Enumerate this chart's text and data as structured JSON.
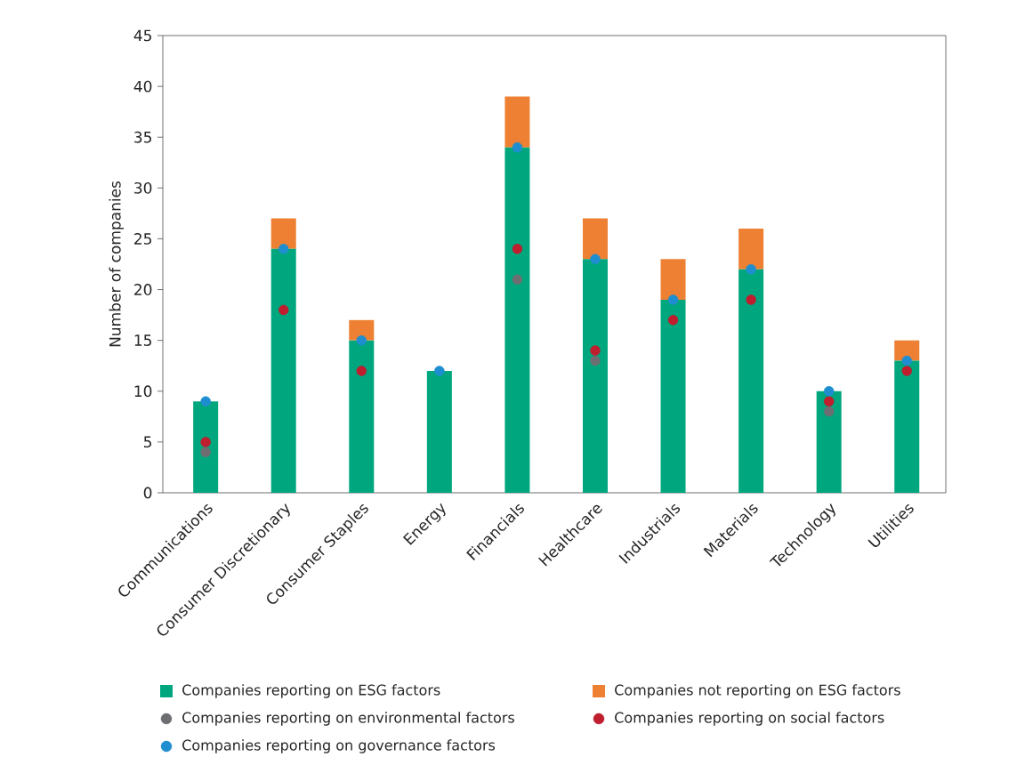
{
  "chart_data": {
    "type": "bar",
    "stacked": true,
    "ylabel": "Number of companies",
    "categories": [
      "Communications",
      "Consumer Discretionary",
      "Consumer Staples",
      "Energy",
      "Financials",
      "Healthcare",
      "Industrials",
      "Materials",
      "Technology",
      "Utilities"
    ],
    "series": [
      {
        "name": "Companies reporting on ESG factors",
        "color": "#00a77e",
        "values": [
          9,
          24,
          15,
          12,
          34,
          23,
          19,
          22,
          10,
          13
        ]
      },
      {
        "name": "Companies not reporting on ESG factors",
        "color": "#ee8033",
        "values": [
          0,
          3,
          2,
          0,
          5,
          4,
          4,
          4,
          0,
          2
        ]
      },
      {
        "name": "Companies reporting on environmental factors",
        "type": "scatter",
        "marker": "circle",
        "color": "#6d6e71",
        "values": [
          4,
          null,
          null,
          null,
          21,
          13,
          null,
          null,
          8,
          null
        ]
      },
      {
        "name": "Companies reporting on social factors",
        "type": "scatter",
        "marker": "circle",
        "color": "#be1e2d",
        "values": [
          5,
          18,
          12,
          null,
          24,
          14,
          17,
          19,
          9,
          12
        ]
      },
      {
        "name": "Companies reporting on governance factors",
        "type": "scatter",
        "marker": "circle",
        "color": "#1e8ed0",
        "values": [
          9,
          24,
          15,
          12,
          34,
          23,
          19,
          22,
          10,
          13
        ]
      }
    ],
    "ylim": [
      0,
      45
    ],
    "yticks": [
      0,
      5,
      10,
      15,
      20,
      25,
      30,
      35,
      40,
      45
    ],
    "grid": false,
    "legend": "bottom"
  }
}
